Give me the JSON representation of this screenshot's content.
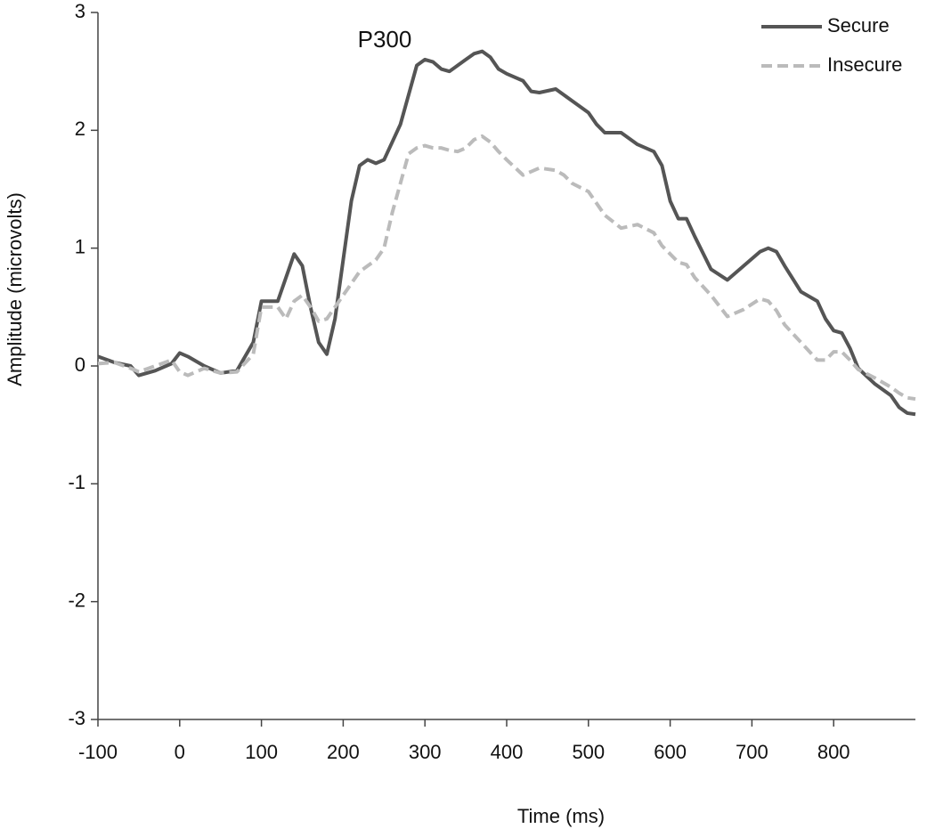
{
  "chart_data": {
    "type": "line",
    "x_label": "Time (ms)",
    "y_label": "Amplitude (microvolts)",
    "annotation": "P300",
    "legend": "upper right",
    "xlim": [
      -100,
      900
    ],
    "xticks": [
      -100,
      0,
      100,
      200,
      300,
      400,
      500,
      600,
      700,
      800
    ],
    "ylim": [
      -3,
      3
    ],
    "yticks": [
      -3,
      -2,
      -1,
      0,
      1,
      2,
      3
    ],
    "x": [
      -100,
      -80,
      -60,
      -50,
      -30,
      -10,
      0,
      10,
      30,
      50,
      70,
      90,
      100,
      120,
      130,
      140,
      150,
      160,
      170,
      180,
      190,
      200,
      210,
      220,
      230,
      240,
      250,
      260,
      270,
      280,
      290,
      300,
      310,
      320,
      330,
      340,
      350,
      360,
      370,
      380,
      390,
      400,
      420,
      430,
      440,
      460,
      470,
      480,
      500,
      510,
      520,
      540,
      560,
      580,
      590,
      600,
      610,
      620,
      630,
      650,
      670,
      690,
      710,
      720,
      730,
      740,
      760,
      780,
      790,
      800,
      810,
      820,
      830,
      850,
      870,
      880,
      890,
      900
    ],
    "series": [
      {
        "name": "Secure",
        "color": "#555555",
        "dashed": false,
        "values": [
          0.08,
          0.03,
          0.0,
          -0.08,
          -0.04,
          0.02,
          0.11,
          0.08,
          0.0,
          -0.06,
          -0.04,
          0.2,
          0.55,
          0.55,
          0.75,
          0.95,
          0.85,
          0.5,
          0.2,
          0.1,
          0.4,
          0.9,
          1.4,
          1.7,
          1.75,
          1.72,
          1.75,
          1.9,
          2.05,
          2.3,
          2.55,
          2.6,
          2.58,
          2.52,
          2.5,
          2.55,
          2.6,
          2.65,
          2.67,
          2.62,
          2.52,
          2.48,
          2.42,
          2.33,
          2.32,
          2.35,
          2.3,
          2.25,
          2.15,
          2.05,
          1.98,
          1.98,
          1.88,
          1.82,
          1.7,
          1.4,
          1.25,
          1.25,
          1.1,
          0.82,
          0.73,
          0.85,
          0.97,
          1.0,
          0.97,
          0.85,
          0.63,
          0.55,
          0.4,
          0.3,
          0.28,
          0.15,
          -0.02,
          -0.15,
          -0.25,
          -0.35,
          -0.4,
          -0.41
        ]
      },
      {
        "name": "Insecure",
        "color": "#bbbbbb",
        "dashed": true,
        "values": [
          0.02,
          0.03,
          -0.02,
          -0.05,
          0.0,
          0.05,
          -0.05,
          -0.08,
          -0.02,
          -0.06,
          -0.05,
          0.1,
          0.5,
          0.5,
          0.4,
          0.55,
          0.6,
          0.5,
          0.38,
          0.4,
          0.5,
          0.6,
          0.7,
          0.8,
          0.85,
          0.9,
          1.0,
          1.3,
          1.55,
          1.8,
          1.85,
          1.87,
          1.85,
          1.85,
          1.83,
          1.82,
          1.85,
          1.92,
          1.95,
          1.9,
          1.82,
          1.75,
          1.62,
          1.65,
          1.68,
          1.66,
          1.62,
          1.55,
          1.48,
          1.38,
          1.28,
          1.17,
          1.2,
          1.13,
          1.02,
          0.95,
          0.88,
          0.86,
          0.75,
          0.6,
          0.42,
          0.48,
          0.57,
          0.55,
          0.47,
          0.35,
          0.2,
          0.05,
          0.05,
          0.12,
          0.12,
          0.05,
          -0.03,
          -0.1,
          -0.18,
          -0.23,
          -0.27,
          -0.28
        ]
      }
    ]
  }
}
